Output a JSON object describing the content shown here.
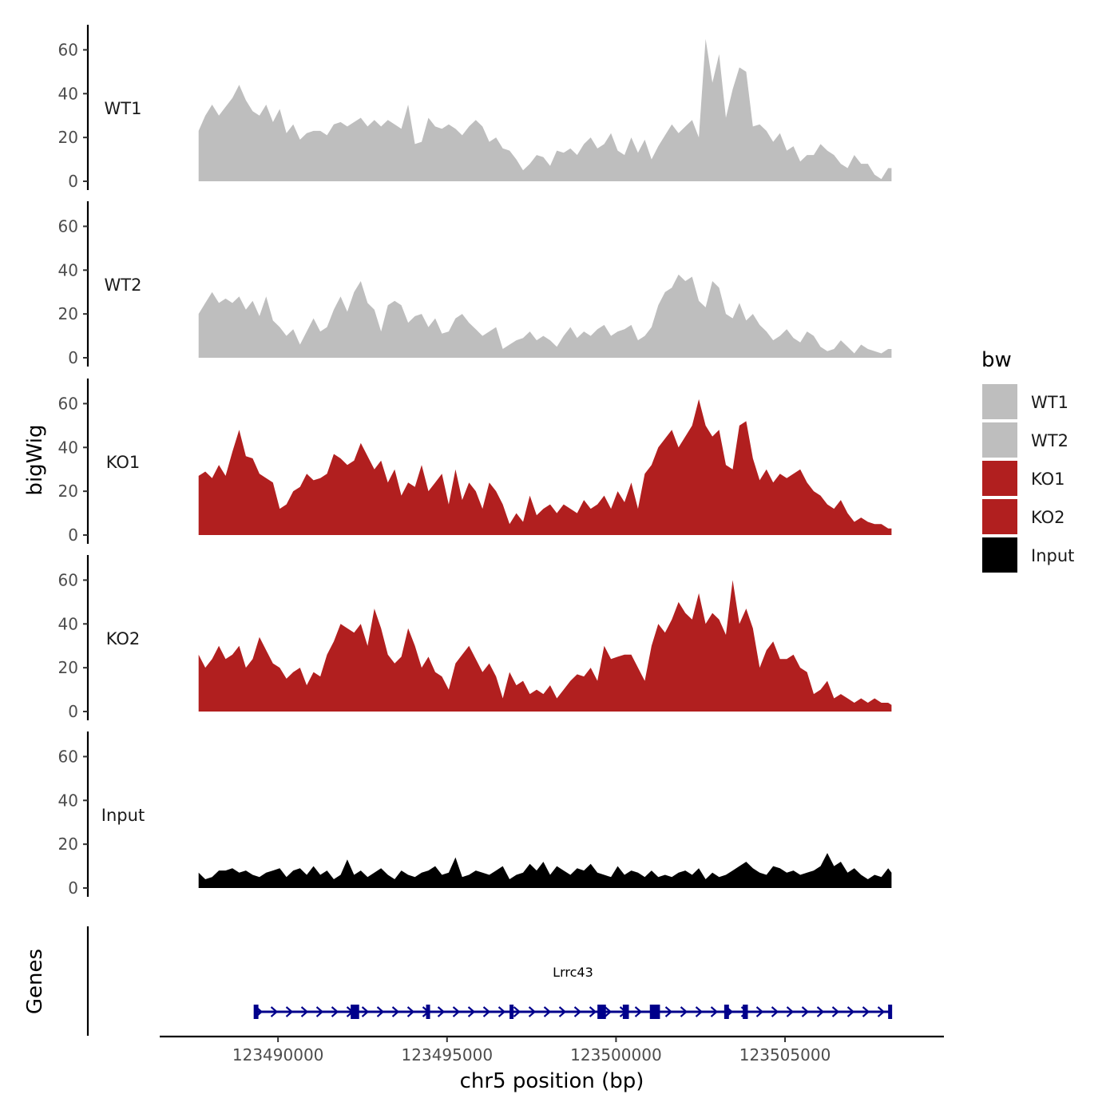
{
  "chart_data": {
    "type": "area",
    "title": "",
    "xlabel": "chr5 position (bp)",
    "ylabel": "bigWig",
    "genes_label": "Genes",
    "xlim": [
      123486500,
      123509700
    ],
    "ylim": [
      0,
      70
    ],
    "y_ticks": [
      0,
      20,
      40,
      60
    ],
    "x_ticks": [
      123490000,
      123495000,
      123500000,
      123505000
    ],
    "x_tick_labels": [
      "123490000",
      "123495000",
      "123500000",
      "123505000"
    ],
    "colors": {
      "WT1": "#bebebe",
      "WT2": "#bebebe",
      "KO1": "#b11f1f",
      "KO2": "#b11f1f",
      "Input": "#000000",
      "gene": "#00008b"
    },
    "x": [
      123487650,
      123487850,
      123488050,
      123488250,
      123488450,
      123488650,
      123488850,
      123489050,
      123489250,
      123489450,
      123489650,
      123489850,
      123490050,
      123490250,
      123490450,
      123490650,
      123490850,
      123491050,
      123491250,
      123491450,
      123491650,
      123491850,
      123492050,
      123492250,
      123492450,
      123492650,
      123492850,
      123493050,
      123493250,
      123493450,
      123493650,
      123493850,
      123494050,
      123494250,
      123494450,
      123494650,
      123494850,
      123495050,
      123495250,
      123495450,
      123495650,
      123495850,
      123496050,
      123496250,
      123496450,
      123496650,
      123496850,
      123497050,
      123497250,
      123497450,
      123497650,
      123497850,
      123498050,
      123498250,
      123498450,
      123498650,
      123498850,
      123499050,
      123499250,
      123499450,
      123499650,
      123499850,
      123500050,
      123500250,
      123500450,
      123500650,
      123500850,
      123501050,
      123501250,
      123501450,
      123501650,
      123501850,
      123502050,
      123502250,
      123502450,
      123502650,
      123502850,
      123503050,
      123503250,
      123503450,
      123503650,
      123503850,
      123504050,
      123504250,
      123504450,
      123504650,
      123504850,
      123505050,
      123505250,
      123505450,
      123505650,
      123505850,
      123506050,
      123506250,
      123506450,
      123506650,
      123506850,
      123507050,
      123507250,
      123507450,
      123507650,
      123507850,
      123508050,
      123508150
    ],
    "series": [
      {
        "name": "WT1",
        "label": "WT1",
        "values": [
          23,
          30,
          35,
          30,
          34,
          38,
          44,
          37,
          32,
          30,
          35,
          27,
          33,
          22,
          26,
          19,
          22,
          23,
          23,
          21,
          26,
          27,
          25,
          27,
          29,
          25,
          28,
          25,
          28,
          26,
          24,
          35,
          17,
          18,
          29,
          25,
          24,
          26,
          24,
          21,
          25,
          28,
          25,
          18,
          20,
          15,
          14,
          10,
          5,
          8,
          12,
          11,
          7,
          14,
          13,
          15,
          12,
          17,
          20,
          15,
          17,
          22,
          14,
          12,
          20,
          13,
          19,
          10,
          16,
          21,
          26,
          22,
          25,
          28,
          20,
          65,
          45,
          58,
          29,
          42,
          52,
          50,
          25,
          26,
          23,
          18,
          22,
          14,
          16,
          9,
          12,
          12,
          17,
          14,
          12,
          8,
          6,
          12,
          8,
          8,
          3,
          1,
          6,
          6
        ]
      },
      {
        "name": "WT2",
        "label": "WT2",
        "values": [
          20,
          25,
          30,
          25,
          27,
          25,
          28,
          22,
          26,
          19,
          28,
          17,
          14,
          10,
          13,
          6,
          12,
          18,
          12,
          14,
          22,
          28,
          21,
          30,
          35,
          25,
          22,
          12,
          24,
          26,
          24,
          16,
          19,
          20,
          14,
          18,
          11,
          12,
          18,
          20,
          16,
          13,
          10,
          12,
          14,
          4,
          6,
          8,
          9,
          12,
          8,
          10,
          8,
          5,
          10,
          14,
          9,
          12,
          10,
          13,
          15,
          10,
          12,
          13,
          15,
          8,
          10,
          14,
          24,
          30,
          32,
          38,
          35,
          37,
          26,
          23,
          35,
          32,
          20,
          18,
          25,
          17,
          20,
          15,
          12,
          8,
          10,
          13,
          9,
          7,
          12,
          10,
          5,
          3,
          4,
          8,
          5,
          2,
          6,
          4,
          3,
          2,
          4,
          4
        ]
      },
      {
        "name": "KO1",
        "label": "KO1",
        "values": [
          27,
          29,
          26,
          32,
          27,
          38,
          48,
          36,
          35,
          28,
          26,
          24,
          12,
          14,
          20,
          22,
          28,
          25,
          26,
          28,
          37,
          35,
          32,
          34,
          42,
          36,
          30,
          34,
          24,
          30,
          18,
          24,
          22,
          32,
          20,
          24,
          28,
          14,
          30,
          16,
          24,
          20,
          12,
          24,
          20,
          14,
          5,
          10,
          6,
          18,
          9,
          12,
          14,
          10,
          14,
          12,
          10,
          16,
          12,
          14,
          18,
          12,
          20,
          15,
          24,
          12,
          28,
          32,
          40,
          44,
          48,
          40,
          45,
          50,
          62,
          50,
          45,
          48,
          32,
          30,
          50,
          52,
          35,
          25,
          30,
          24,
          28,
          26,
          28,
          30,
          24,
          20,
          18,
          14,
          12,
          16,
          10,
          6,
          8,
          6,
          5,
          5,
          3,
          3
        ]
      },
      {
        "name": "KO2",
        "label": "KO2",
        "values": [
          26,
          20,
          24,
          30,
          24,
          26,
          30,
          20,
          24,
          34,
          28,
          22,
          20,
          15,
          18,
          20,
          12,
          18,
          16,
          26,
          32,
          40,
          38,
          36,
          40,
          30,
          47,
          38,
          26,
          22,
          25,
          38,
          30,
          20,
          25,
          18,
          16,
          10,
          22,
          26,
          30,
          24,
          18,
          22,
          16,
          6,
          18,
          12,
          14,
          8,
          10,
          8,
          12,
          6,
          10,
          14,
          17,
          16,
          20,
          14,
          30,
          24,
          25,
          26,
          26,
          20,
          14,
          30,
          40,
          36,
          42,
          50,
          45,
          42,
          54,
          40,
          45,
          42,
          35,
          60,
          40,
          47,
          38,
          20,
          28,
          32,
          24,
          24,
          26,
          20,
          18,
          8,
          10,
          14,
          6,
          8,
          6,
          4,
          6,
          4,
          6,
          4,
          4,
          3
        ]
      },
      {
        "name": "Input",
        "label": "Input",
        "values": [
          7,
          4,
          5,
          8,
          8,
          9,
          7,
          8,
          6,
          5,
          7,
          8,
          9,
          5,
          8,
          9,
          6,
          10,
          6,
          8,
          4,
          6,
          13,
          6,
          8,
          5,
          7,
          9,
          6,
          4,
          8,
          6,
          5,
          7,
          8,
          10,
          6,
          7,
          14,
          5,
          6,
          8,
          7,
          6,
          8,
          10,
          4,
          6,
          7,
          11,
          8,
          12,
          6,
          10,
          8,
          6,
          9,
          8,
          11,
          7,
          6,
          5,
          10,
          6,
          8,
          7,
          5,
          8,
          5,
          6,
          5,
          7,
          8,
          6,
          9,
          4,
          7,
          5,
          6,
          8,
          10,
          12,
          9,
          7,
          6,
          10,
          9,
          7,
          8,
          6,
          7,
          8,
          10,
          16,
          10,
          12,
          7,
          9,
          6,
          4,
          6,
          5,
          9,
          7
        ]
      }
    ],
    "legend": {
      "title": "bw",
      "position": "right",
      "entries": [
        "WT1",
        "WT2",
        "KO1",
        "KO2",
        "Input"
      ]
    },
    "gene": {
      "name": "Lrrc43",
      "start": 123489300,
      "end": 123508150,
      "strand": "+",
      "exons": [
        [
          123489280,
          123489420
        ],
        [
          123492150,
          123492400
        ],
        [
          123494380,
          123494480
        ],
        [
          123496850,
          123496950
        ],
        [
          123499450,
          123499700
        ],
        [
          123500200,
          123500380
        ],
        [
          123501000,
          123501300
        ],
        [
          123503200,
          123503340
        ],
        [
          123503750,
          123503900
        ],
        [
          123508050,
          123508150
        ]
      ]
    }
  }
}
